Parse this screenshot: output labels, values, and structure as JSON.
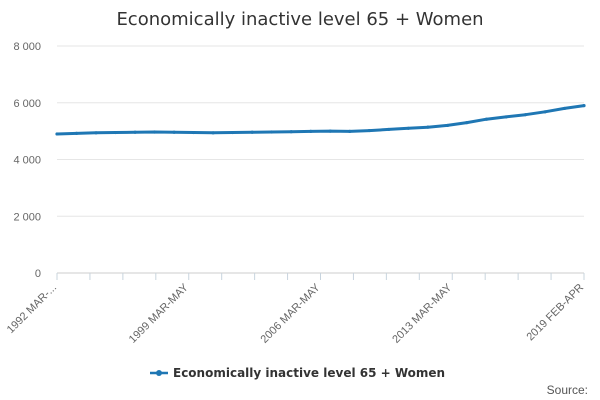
{
  "chart_data": {
    "type": "line",
    "title": "Economically inactive level 65 + Women",
    "xlabel": "",
    "ylabel": "",
    "ylim": [
      0,
      8000
    ],
    "y_ticks": [
      0,
      2000,
      4000,
      6000,
      8000
    ],
    "y_tick_labels": [
      "0",
      "2 000",
      "4 000",
      "6 000",
      "8 000"
    ],
    "x_tick_labels": [
      "1992 MAR-...",
      "1999 MAR-MAY",
      "2006 MAR-MAY",
      "2013 MAR-MAY",
      "2019 FEB-APR"
    ],
    "grid": true,
    "legend_position": "bottom-center",
    "color": "#1f77b4",
    "series": [
      {
        "name": "Economically inactive level 65 + Women",
        "x": [
          "1992 MAR-MAY",
          "1993 MAR-MAY",
          "1994 MAR-MAY",
          "1995 MAR-MAY",
          "1996 MAR-MAY",
          "1997 MAR-MAY",
          "1998 MAR-MAY",
          "1999 MAR-MAY",
          "2000 MAR-MAY",
          "2001 MAR-MAY",
          "2002 MAR-MAY",
          "2003 MAR-MAY",
          "2004 MAR-MAY",
          "2005 MAR-MAY",
          "2006 MAR-MAY",
          "2007 MAR-MAY",
          "2008 MAR-MAY",
          "2009 MAR-MAY",
          "2010 MAR-MAY",
          "2011 MAR-MAY",
          "2012 MAR-MAY",
          "2013 MAR-MAY",
          "2014 MAR-MAY",
          "2015 MAR-MAY",
          "2016 MAR-MAY",
          "2017 MAR-MAY",
          "2018 MAR-MAY",
          "2019 FEB-APR"
        ],
        "values": [
          4900,
          4920,
          4940,
          4950,
          4960,
          4970,
          4960,
          4950,
          4940,
          4950,
          4960,
          4970,
          4980,
          4990,
          5000,
          4990,
          5020,
          5060,
          5100,
          5140,
          5200,
          5300,
          5420,
          5500,
          5580,
          5680,
          5800,
          5900
        ]
      }
    ]
  },
  "legend": {
    "label": "Economically inactive level 65 + Women"
  },
  "source": {
    "label": "Source:"
  }
}
